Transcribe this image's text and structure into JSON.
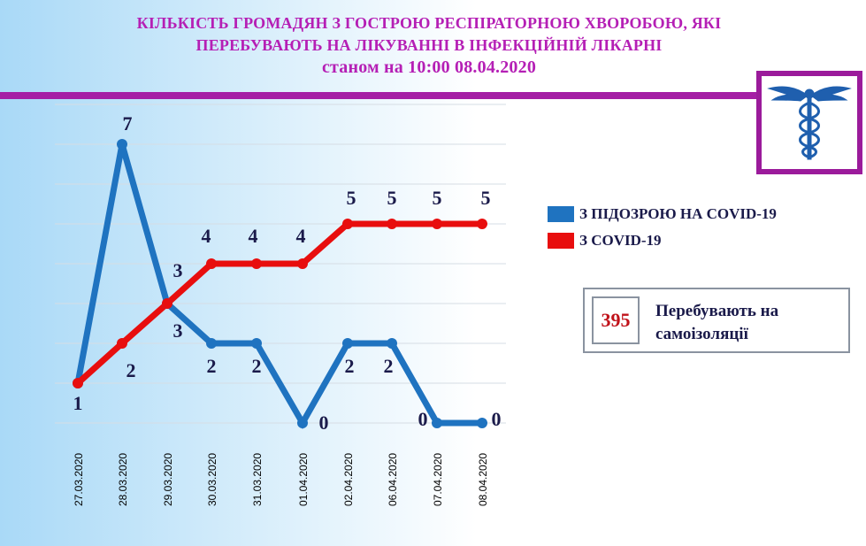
{
  "header": {
    "title_line1": "КІЛЬКІСТЬ ГРОМАДЯН  З ГОСТРОЮ РЕСПІРАТОРНОЮ ХВОРОБОЮ, ЯКІ",
    "title_line2": "ПЕРЕБУВАЮТЬ НА ЛІКУВАННІ В ІНФЕКЦІЙНІЙ ЛІКАРНІ",
    "title_line3": "станом на 10:00    08.04.2020"
  },
  "colors": {
    "title": "#b51fb5",
    "suspected": "#1f73c0",
    "covid": "#e80e0e",
    "accent_bar": "#a51ea5"
  },
  "logo": {
    "icon": "caduceus-icon"
  },
  "legend": {
    "suspected_label": "З ПІДОЗРОЮ НА COVID-19",
    "covid_label": "З COVID-19"
  },
  "self_isolation": {
    "count": "395",
    "label": "Перебувають  на самоізоляції"
  },
  "chart_data": {
    "type": "line",
    "title": "",
    "xlabel": "",
    "ylabel": "",
    "ylim": [
      0,
      8
    ],
    "grid": true,
    "legend_position": "right",
    "categories": [
      "27.03.2020",
      "28.03.2020",
      "29.03.2020",
      "30.03.2020",
      "31.03.2020",
      "01.04.2020",
      "02.04.2020",
      "06.04.2020",
      "07.04.2020",
      "08.04.2020"
    ],
    "series": [
      {
        "name": "З ПІДОЗРОЮ НА COVID-19",
        "color": "#1f73c0",
        "values": [
          1,
          7,
          3,
          2,
          2,
          0,
          2,
          2,
          0,
          0
        ]
      },
      {
        "name": "З COVID-19",
        "color": "#e80e0e",
        "values": [
          1,
          2,
          3,
          4,
          4,
          4,
          5,
          5,
          5,
          5
        ]
      }
    ]
  }
}
